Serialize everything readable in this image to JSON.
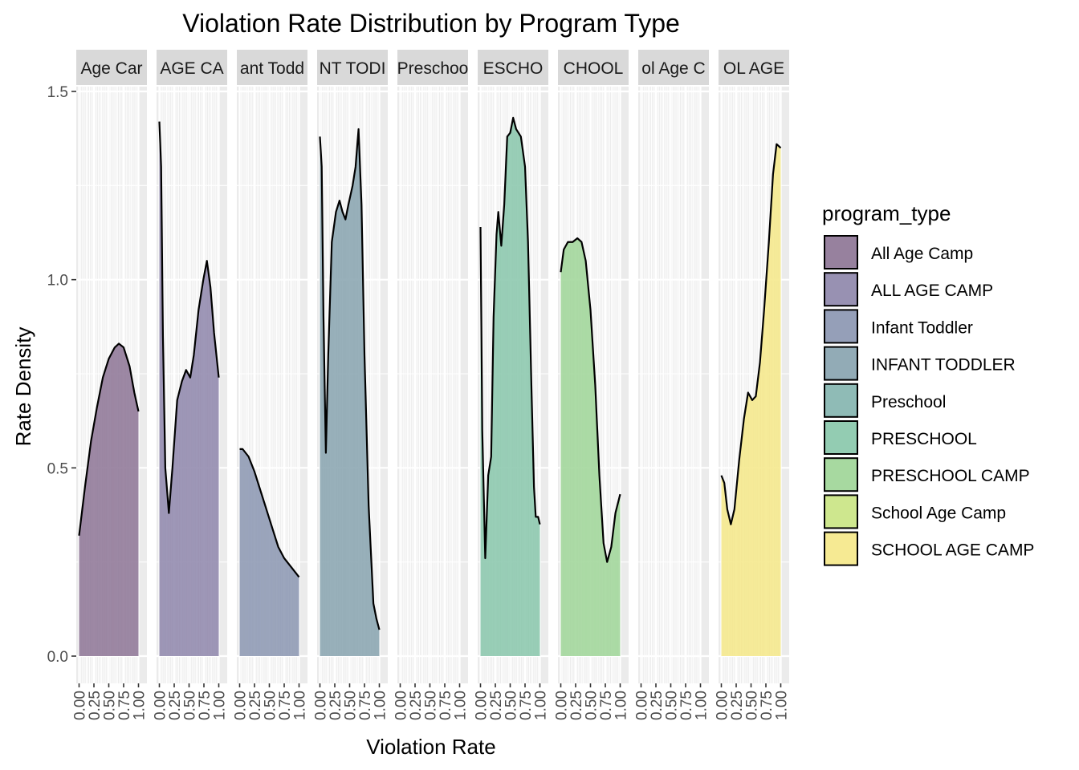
{
  "chart_data": {
    "type": "area",
    "title": "Violation Rate Distribution by Program Type",
    "xlabel": "Violation Rate",
    "ylabel": "Rate Density",
    "xlim": [
      0,
      1
    ],
    "ylim": [
      0,
      1.5
    ],
    "x_ticks": [
      "0.00",
      "0.25",
      "0.50",
      "0.75",
      "1.00"
    ],
    "y_ticks": [
      "0.0",
      "0.5",
      "1.0",
      "1.5"
    ],
    "grid": true,
    "legend_title": "program_type",
    "legend_position": "right",
    "panels": [
      {
        "strip": "Age Car",
        "name": "All Age Camp",
        "color": "#8c7394",
        "points": [
          [
            0.0,
            0.32
          ],
          [
            0.1,
            0.45
          ],
          [
            0.2,
            0.57
          ],
          [
            0.3,
            0.66
          ],
          [
            0.4,
            0.74
          ],
          [
            0.5,
            0.79
          ],
          [
            0.6,
            0.82
          ],
          [
            0.67,
            0.83
          ],
          [
            0.75,
            0.82
          ],
          [
            0.85,
            0.77
          ],
          [
            0.93,
            0.7
          ],
          [
            1.0,
            0.65
          ]
        ]
      },
      {
        "strip": "AGE CA",
        "name": "ALL AGE CAMP",
        "color": "#8d85aa",
        "points": [
          [
            0.0,
            1.42
          ],
          [
            0.03,
            1.3
          ],
          [
            0.06,
            0.85
          ],
          [
            0.1,
            0.5
          ],
          [
            0.16,
            0.38
          ],
          [
            0.22,
            0.5
          ],
          [
            0.3,
            0.68
          ],
          [
            0.38,
            0.73
          ],
          [
            0.45,
            0.76
          ],
          [
            0.52,
            0.74
          ],
          [
            0.58,
            0.8
          ],
          [
            0.66,
            0.92
          ],
          [
            0.74,
            1.0
          ],
          [
            0.8,
            1.05
          ],
          [
            0.86,
            0.98
          ],
          [
            0.92,
            0.86
          ],
          [
            1.0,
            0.74
          ]
        ]
      },
      {
        "strip": "ant Todd",
        "name": "Infant Toddler",
        "color": "#8a95b0",
        "points": [
          [
            0.0,
            0.55
          ],
          [
            0.05,
            0.55
          ],
          [
            0.15,
            0.53
          ],
          [
            0.25,
            0.49
          ],
          [
            0.35,
            0.44
          ],
          [
            0.45,
            0.39
          ],
          [
            0.55,
            0.34
          ],
          [
            0.65,
            0.29
          ],
          [
            0.75,
            0.26
          ],
          [
            0.85,
            0.24
          ],
          [
            1.0,
            0.21
          ]
        ]
      },
      {
        "strip": "NT TODI",
        "name": "INFANT TODDLER",
        "color": "#86a2ae",
        "points": [
          [
            0.0,
            1.38
          ],
          [
            0.03,
            1.3
          ],
          [
            0.06,
            0.9
          ],
          [
            0.1,
            0.54
          ],
          [
            0.14,
            0.8
          ],
          [
            0.2,
            1.1
          ],
          [
            0.27,
            1.18
          ],
          [
            0.33,
            1.21
          ],
          [
            0.38,
            1.18
          ],
          [
            0.43,
            1.16
          ],
          [
            0.48,
            1.2
          ],
          [
            0.55,
            1.25
          ],
          [
            0.6,
            1.3
          ],
          [
            0.65,
            1.4
          ],
          [
            0.7,
            1.2
          ],
          [
            0.75,
            0.8
          ],
          [
            0.82,
            0.4
          ],
          [
            0.9,
            0.14
          ],
          [
            0.95,
            0.1
          ],
          [
            1.0,
            0.07
          ]
        ]
      },
      {
        "strip": "Preschoo",
        "name": "Preschool",
        "color": "#83b4ae",
        "points": []
      },
      {
        "strip": "ESCHO",
        "name": "PRESCHOOL",
        "color": "#87c6aa",
        "points": [
          [
            0.0,
            1.14
          ],
          [
            0.03,
            0.6
          ],
          [
            0.08,
            0.26
          ],
          [
            0.13,
            0.48
          ],
          [
            0.18,
            0.53
          ],
          [
            0.22,
            0.9
          ],
          [
            0.27,
            1.12
          ],
          [
            0.3,
            1.18
          ],
          [
            0.35,
            1.09
          ],
          [
            0.4,
            1.2
          ],
          [
            0.45,
            1.38
          ],
          [
            0.5,
            1.39
          ],
          [
            0.55,
            1.43
          ],
          [
            0.6,
            1.4
          ],
          [
            0.68,
            1.38
          ],
          [
            0.75,
            1.3
          ],
          [
            0.8,
            1.1
          ],
          [
            0.86,
            0.7
          ],
          [
            0.9,
            0.45
          ],
          [
            0.93,
            0.37
          ],
          [
            0.97,
            0.37
          ],
          [
            1.0,
            0.35
          ]
        ]
      },
      {
        "strip": "CHOOL",
        "name": "PRESCHOOL CAMP",
        "color": "#9dd596",
        "points": [
          [
            0.0,
            1.02
          ],
          [
            0.05,
            1.08
          ],
          [
            0.12,
            1.1
          ],
          [
            0.2,
            1.1
          ],
          [
            0.28,
            1.11
          ],
          [
            0.35,
            1.1
          ],
          [
            0.42,
            1.05
          ],
          [
            0.5,
            0.92
          ],
          [
            0.58,
            0.72
          ],
          [
            0.65,
            0.48
          ],
          [
            0.72,
            0.3
          ],
          [
            0.78,
            0.25
          ],
          [
            0.85,
            0.29
          ],
          [
            0.92,
            0.38
          ],
          [
            1.0,
            0.43
          ]
        ]
      },
      {
        "strip": "ol Age C",
        "name": "School Age Camp",
        "color": "#c9e482",
        "points": []
      },
      {
        "strip": "OL AGE",
        "name": "SCHOOL AGE CAMP",
        "color": "#f5e887",
        "points": [
          [
            0.0,
            0.48
          ],
          [
            0.05,
            0.46
          ],
          [
            0.1,
            0.39
          ],
          [
            0.16,
            0.35
          ],
          [
            0.22,
            0.39
          ],
          [
            0.3,
            0.52
          ],
          [
            0.38,
            0.63
          ],
          [
            0.45,
            0.7
          ],
          [
            0.52,
            0.68
          ],
          [
            0.58,
            0.69
          ],
          [
            0.65,
            0.78
          ],
          [
            0.72,
            0.92
          ],
          [
            0.8,
            1.1
          ],
          [
            0.87,
            1.28
          ],
          [
            0.93,
            1.36
          ],
          [
            1.0,
            1.35
          ]
        ]
      }
    ]
  }
}
